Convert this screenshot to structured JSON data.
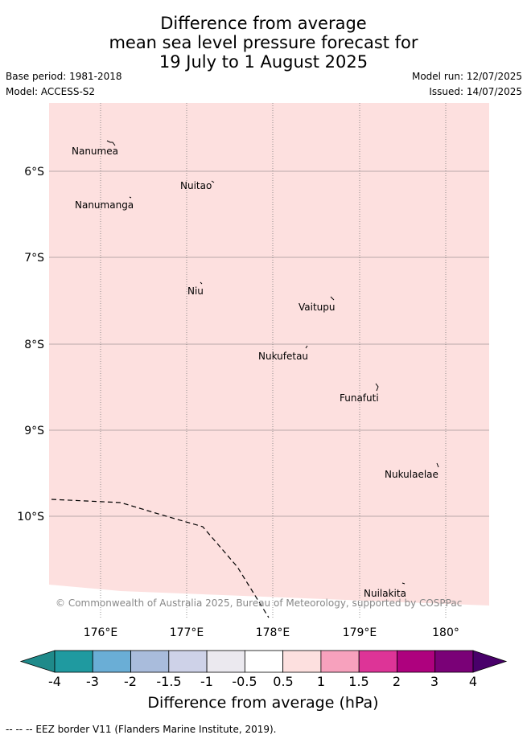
{
  "title": {
    "line1": "Difference from average",
    "line2": "mean sea level pressure forecast for",
    "line3": "19 July to 1 August 2025"
  },
  "meta": {
    "base_period": "Base period: 1981-2018",
    "model": "Model: ACCESS-S2",
    "model_run": "Model run: 12/07/2025",
    "issued": "Issued: 14/07/2025"
  },
  "map": {
    "fill_color": "#fde0df",
    "lat_labels": [
      "6°S",
      "7°S",
      "8°S",
      "9°S",
      "10°S"
    ],
    "lon_labels": [
      "176°E",
      "177°E",
      "178°E",
      "179°E",
      "180°"
    ],
    "places": [
      "Nanumea",
      "Nuitao",
      "Nanumanga",
      "Niu",
      "Vaitupu",
      "Nukufetau",
      "Funafuti",
      "Nukulaelae",
      "Nuilakita"
    ],
    "copyright": "© Commonwealth of Australia 2025, Bureau of Meteorology, supported by COSPPac"
  },
  "colorbar": {
    "colors": [
      "#1f8a8a",
      "#1f9aa0",
      "#6aaed6",
      "#a9bcdc",
      "#ced2e8",
      "#ebe9ef",
      "#ffffff",
      "#fde0df",
      "#f7a1bd",
      "#dd3497",
      "#ae017e",
      "#7a0177",
      "#49006a"
    ],
    "tick_labels": [
      "-4",
      "-3",
      "-2",
      "-1.5",
      "-1",
      "-0.5",
      "0.5",
      "1",
      "1.5",
      "2",
      "3",
      "4"
    ],
    "label": "Difference from average (hPa)"
  },
  "footer": "-- -- -- EEZ border V11 (Flanders Marine Institute, 2019)."
}
